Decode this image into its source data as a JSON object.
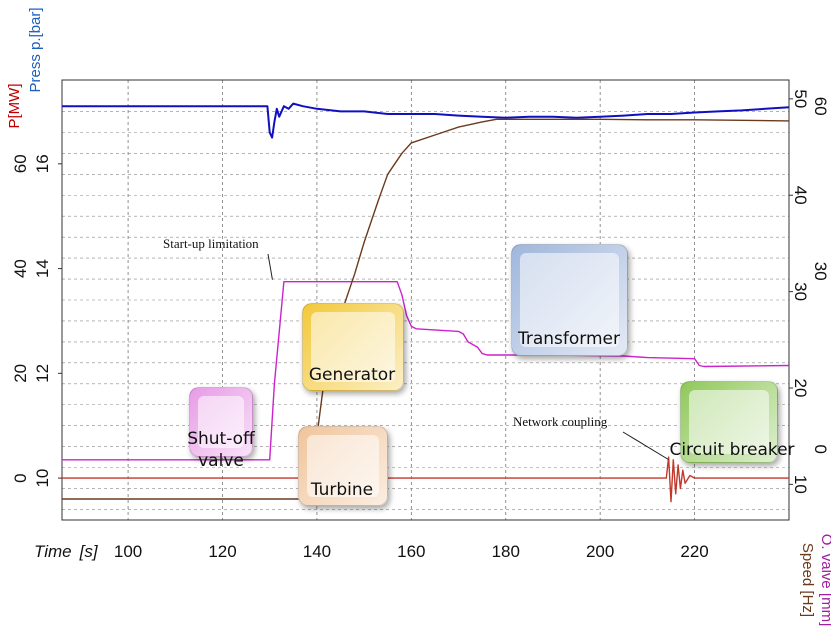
{
  "chart_data": {
    "type": "line",
    "x": {
      "label": "Time",
      "unit": "[s]",
      "ticks": [
        100,
        120,
        140,
        160,
        180,
        200,
        220
      ],
      "range": [
        86,
        240
      ]
    },
    "y_axes": {
      "power": {
        "label": "P[MW]",
        "ticks": [
          "0",
          "20",
          "40",
          "60"
        ],
        "color": "#c00000"
      },
      "pressure": {
        "label": "Press p.[bar]",
        "ticks": [
          "10",
          "12",
          "14",
          "16"
        ],
        "color": "#1f5fbf",
        "range": [
          9.2,
          17.6
        ]
      },
      "valve": {
        "label": "O. valve [mm]",
        "ticks": [
          "0",
          "30",
          "60"
        ],
        "color": "#a020a0"
      },
      "speed": {
        "label": "Speed [Hz]",
        "ticks": [
          "10",
          "20",
          "30",
          "40",
          "50"
        ],
        "color": "#6b3a1e"
      }
    },
    "series": [
      {
        "key": "pressure",
        "color": "#1010c0",
        "x": [
          86,
          129.5,
          130,
          130.5,
          131,
          131.5,
          132,
          133,
          134,
          135,
          137,
          140,
          145,
          150,
          155,
          160,
          165,
          170,
          175,
          180,
          185,
          190,
          195,
          200,
          205,
          210,
          215,
          220,
          225,
          230,
          235,
          240
        ],
        "y": [
          17.1,
          17.1,
          16.6,
          16.5,
          16.8,
          17.05,
          16.9,
          17.1,
          17.05,
          17.15,
          17.1,
          17.05,
          17.0,
          17.0,
          16.95,
          16.95,
          16.95,
          16.92,
          16.9,
          16.88,
          16.9,
          16.9,
          16.88,
          16.9,
          16.92,
          16.95,
          16.95,
          16.98,
          17.0,
          17.02,
          17.05,
          17.08
        ]
      },
      {
        "key": "valve",
        "color": "#cc22cc",
        "x": [
          86,
          130,
          131,
          133,
          157,
          158,
          159,
          160,
          161,
          170,
          171,
          172,
          174,
          175,
          176,
          190,
          205,
          210,
          220,
          221,
          222,
          240
        ],
        "y": [
          10.35,
          10.35,
          11.8,
          13.75,
          13.75,
          13.5,
          13.1,
          12.9,
          12.85,
          12.8,
          12.75,
          12.6,
          12.5,
          12.38,
          12.35,
          12.35,
          12.33,
          12.3,
          12.28,
          12.15,
          12.13,
          12.15
        ]
      },
      {
        "key": "speed",
        "color": "#6b3a1e",
        "x": [
          86,
          138,
          138.5,
          140,
          142,
          145,
          148,
          150,
          153,
          155,
          158,
          160,
          165,
          170,
          175,
          178,
          180,
          190,
          200,
          210,
          220,
          230,
          240
        ],
        "y": [
          9.6,
          9.6,
          9.7,
          10.8,
          12.2,
          13.1,
          13.9,
          14.5,
          15.3,
          15.8,
          16.2,
          16.4,
          16.55,
          16.7,
          16.8,
          16.85,
          16.85,
          16.85,
          16.85,
          16.84,
          16.84,
          16.83,
          16.82
        ]
      },
      {
        "key": "power",
        "color": "#c0392b",
        "x": [
          86,
          214,
          214.5,
          215,
          215.5,
          216,
          216.5,
          217,
          217.5,
          218,
          219,
          220,
          240
        ],
        "y": [
          10.0,
          10.0,
          10.4,
          9.55,
          10.35,
          9.7,
          10.25,
          9.8,
          10.15,
          9.9,
          10.05,
          10.0,
          10.0
        ]
      }
    ],
    "annotations": [
      {
        "text": "Start-up limitation",
        "arrow_to_x": 131,
        "arrow_to_y": 13.75
      },
      {
        "text": "Network coupling",
        "arrow_to_x": 214.5,
        "arrow_to_y": 10.2
      }
    ],
    "grid": true
  },
  "components": [
    {
      "name": "shutoff-valve",
      "label_line1": "Shut-off",
      "label_line2": "valve",
      "color": "#e79be6"
    },
    {
      "name": "turbine",
      "label_line1": "Turbine",
      "label_line2": "",
      "color": "#f0c49a"
    },
    {
      "name": "generator",
      "label_line1": "Generator",
      "label_line2": "",
      "color": "#f3c83a"
    },
    {
      "name": "transformer",
      "label_line1": "Transformer",
      "label_line2": "",
      "color": "#9fb6dc"
    },
    {
      "name": "circuit-breaker",
      "label_line1": "Circuit breaker",
      "label_line2": "",
      "color": "#8fc85a"
    }
  ]
}
